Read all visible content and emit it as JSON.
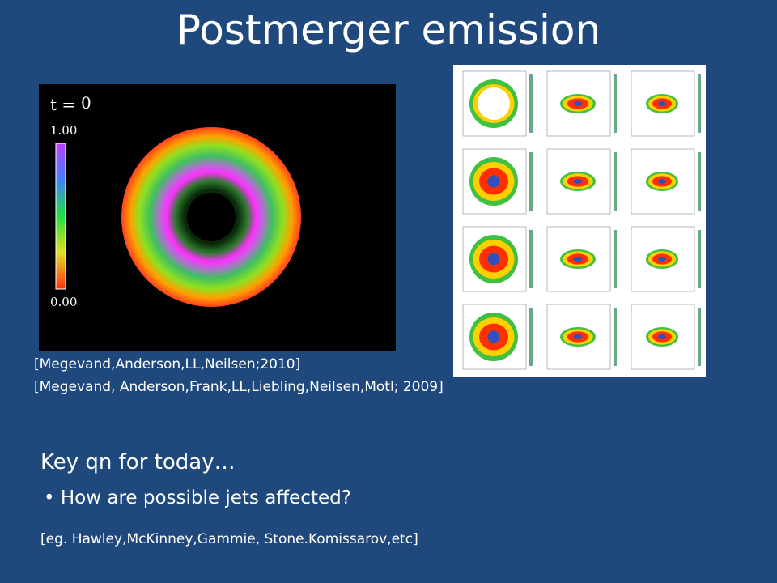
{
  "title": "Postmerger emission",
  "left_figure": {
    "time_label": "t =",
    "time_value": "0",
    "colorbar_max": "1.00",
    "colorbar_min": "0.00"
  },
  "references": [
    "[Megevand,Anderson,LL,Neilsen;2010]",
    "[Megevand, Anderson,Frank,LL,Liebling,Neilsen,Motl; 2009]"
  ],
  "key_question": "Key qn for today…",
  "bullets": [
    "How are possible jets affected?"
  ],
  "note": "[eg. Hawley,McKinney,Gammie, Stone.Komissarov,etc]"
}
